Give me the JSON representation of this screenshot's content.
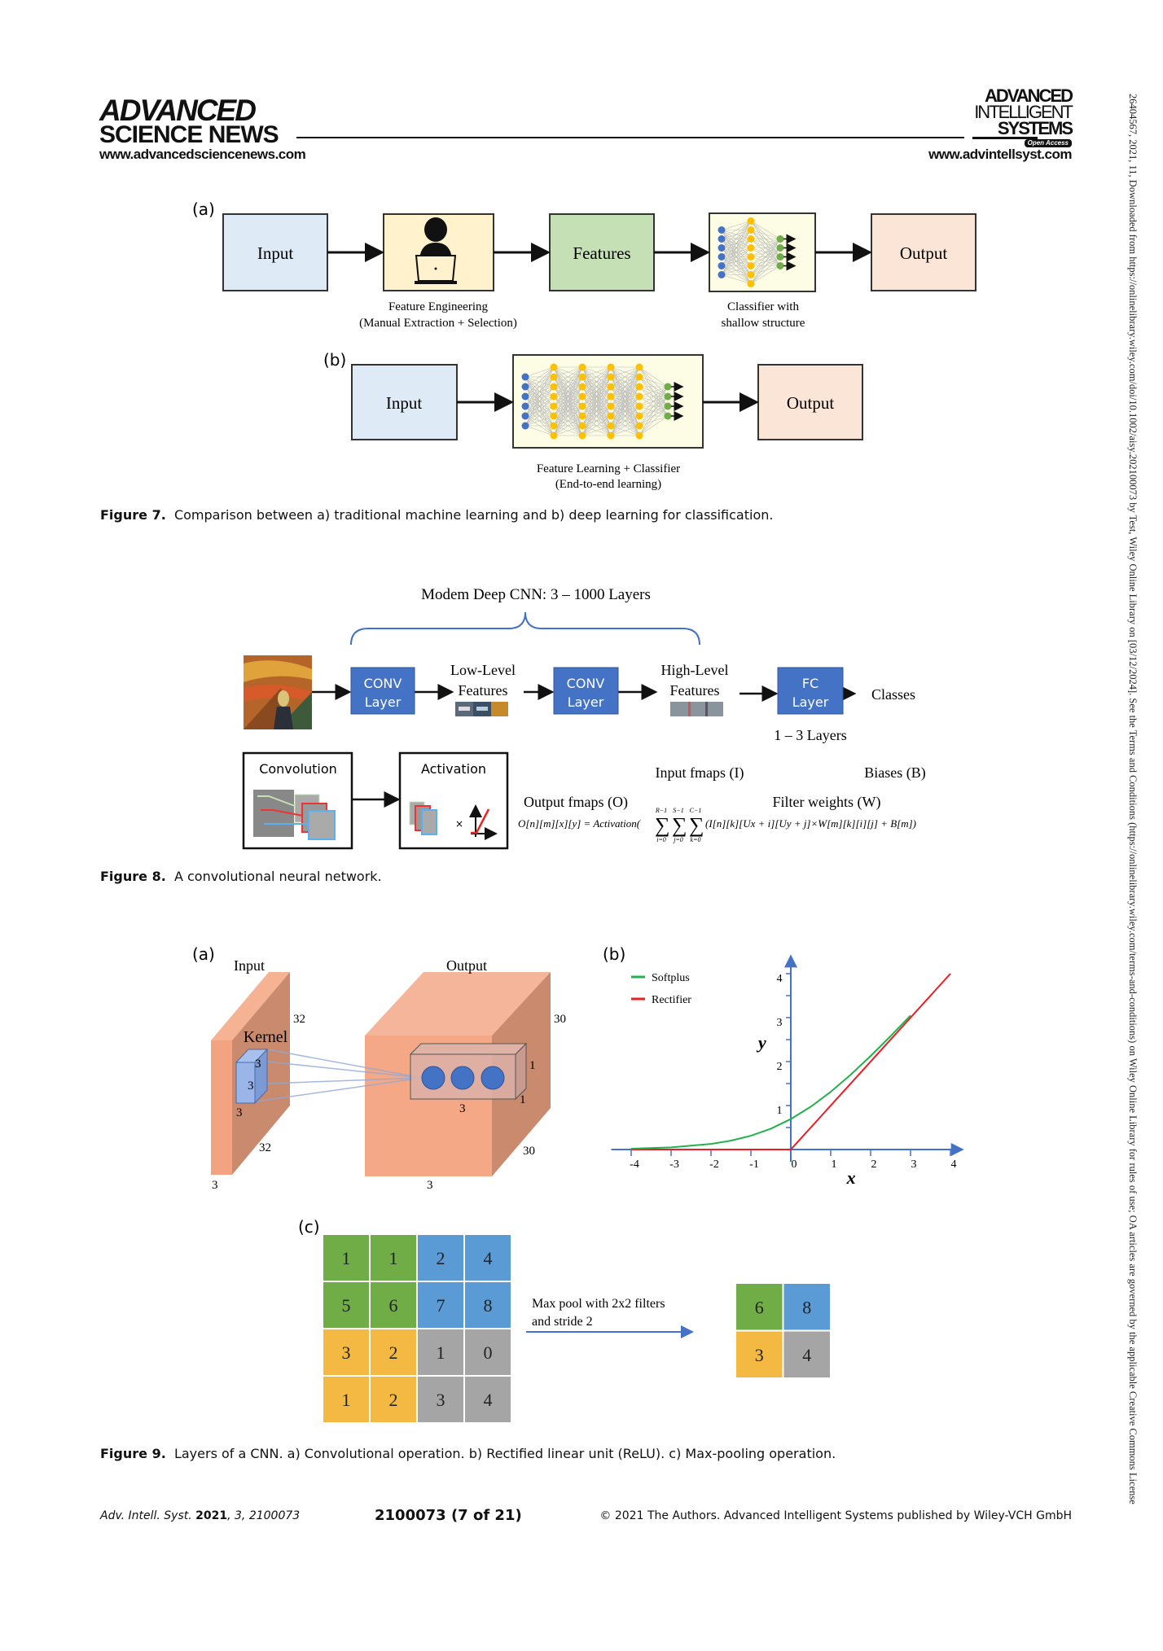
{
  "header": {
    "left_logo_line1": "ADVANCED",
    "left_logo_line2": "SCIENCE NEWS",
    "left_url": "www.advancedsciencenews.com",
    "right_logo_line1": "ADVANCED",
    "right_logo_line2": "INTELLIGENT",
    "right_logo_line3": "SYSTEMS",
    "right_logo_badge": "Open Access",
    "right_url": "www.advintellsyst.com"
  },
  "side_note": "26404567, 2021, 11, Downloaded from https://onlinelibrary.wiley.com/doi/10.1002/aisy.202100073 by Test, Wiley Online Library on [03/12/2024]. See the Terms and Conditions (https://onlinelibrary.wiley.com/terms-and-conditions) on Wiley Online Library for rules of use; OA articles are governed by the applicable Creative Commons License",
  "figure7": {
    "panel_a": "(a)",
    "panel_b": "(b)",
    "a_boxes": [
      "Input",
      "Features",
      "Output"
    ],
    "a_caption_fe_1": "Feature Engineering",
    "a_caption_fe_2": "(Manual Extraction + Selection)",
    "a_caption_cls_1": "Classifier with",
    "a_caption_cls_2": "shallow structure",
    "b_boxes": [
      "Input",
      "Output"
    ],
    "b_caption_1": "Feature Learning + Classifier",
    "b_caption_2": "(End-to-end learning)",
    "colors": {
      "input": "#deebf7",
      "engineering": "#fff2cc",
      "features": "#c5e0b4",
      "output": "#fbe5d6",
      "nn_blue": "#4472c4",
      "nn_yellow": "#ffc000",
      "nn_green": "#70ad47"
    },
    "caption_label": "Figure 7.",
    "caption_text": "Comparison between a) traditional machine learning and b) deep learning for classification."
  },
  "figure8": {
    "title": "Modem Deep CNN: 3 – 1000 Layers",
    "conv1": [
      "CONV",
      "Layer"
    ],
    "low_level": [
      "Low-Level",
      "Features"
    ],
    "conv2": [
      "CONV",
      "Layer"
    ],
    "high_level": [
      "High-Level",
      "Features"
    ],
    "fc": [
      "FC",
      "Layer"
    ],
    "classes": "Classes",
    "fc_layers": "1 – 3 Layers",
    "convolution": "Convolution",
    "activation": "Activation",
    "times": "×",
    "input_fmaps": "Input fmaps (I)",
    "biases": "Biases (B)",
    "output_fmaps": "Output fmaps (O)",
    "filter_weights": "Filter weights (W)",
    "formula_lhs": "O[n][m][x][y] = Activation(",
    "sum_tops": [
      "R−1",
      "S−1",
      "C−1"
    ],
    "sum_bottoms": [
      "i=0",
      "j=0",
      "k=0"
    ],
    "formula_rhs": "(I[n][k][Ux + i][Uy + j]×W[m][k][i][j] + B[m])",
    "layer_color": "#4472c4",
    "caption_label": "Figure 8.",
    "caption_text": "A convolutional neural network."
  },
  "figure9": {
    "panel_a": "(a)",
    "panel_b": "(b)",
    "panel_c": "(c)",
    "a_labels": {
      "input": "Input",
      "output": "Output",
      "kernel": "Kernel",
      "in_h": "32",
      "in_w": "32",
      "in_d": "3",
      "k1": "3",
      "k2": "3",
      "k3": "3",
      "out_h": "30",
      "out_w": "30",
      "out_d": "3",
      "box1": "1",
      "box2": "1",
      "box3": "3"
    },
    "c_input_grid": [
      [
        1,
        1,
        2,
        4
      ],
      [
        5,
        6,
        7,
        8
      ],
      [
        3,
        2,
        1,
        0
      ],
      [
        1,
        2,
        3,
        4
      ]
    ],
    "c_pool_text_1": "Max pool with 2x2 filters",
    "c_pool_text_2": "and stride 2",
    "c_output_grid": [
      [
        6,
        8
      ],
      [
        3,
        4
      ]
    ],
    "c_colors": {
      "green": "#70ad47",
      "blue": "#5b9bd5",
      "yellow": "#f4b942",
      "gray": "#a5a5a5"
    },
    "caption_label": "Figure 9.",
    "caption_text": "Layers of a CNN. a) Convolutional operation. b) Rectified linear unit (ReLU). c) Max-pooling operation."
  },
  "chart_data": {
    "type": "line",
    "xlabel": "x",
    "ylabel": "y",
    "xlim": [
      -4,
      4
    ],
    "ylim": [
      0,
      4
    ],
    "x_ticks": [
      "-4",
      "-3",
      "-2",
      "-1",
      "0",
      "1",
      "2",
      "3",
      "4"
    ],
    "y_ticks": [
      "1",
      "2",
      "3",
      "4"
    ],
    "legend": "top-left",
    "series": [
      {
        "name": "Softplus",
        "color": "#22b14c",
        "x": [
          -4,
          -3,
          -2,
          -1.5,
          -1,
          -0.5,
          0,
          0.5,
          1,
          1.5,
          2,
          2.5,
          3
        ],
        "y": [
          0.018,
          0.049,
          0.127,
          0.201,
          0.313,
          0.474,
          0.693,
          0.974,
          1.313,
          1.701,
          2.127,
          2.579,
          3.049
        ]
      },
      {
        "name": "Rectifier",
        "color": "#ed1c24",
        "x": [
          -4,
          0,
          4
        ],
        "y": [
          0,
          0,
          4
        ]
      }
    ]
  },
  "footer": {
    "journal": "Adv. Intell. Syst.",
    "year": "2021",
    "rest": ", 3, 2100073",
    "page": "2100073 (7 of 21)",
    "copyright": "© 2021 The Authors. Advanced Intelligent Systems published by Wiley-VCH GmbH"
  }
}
